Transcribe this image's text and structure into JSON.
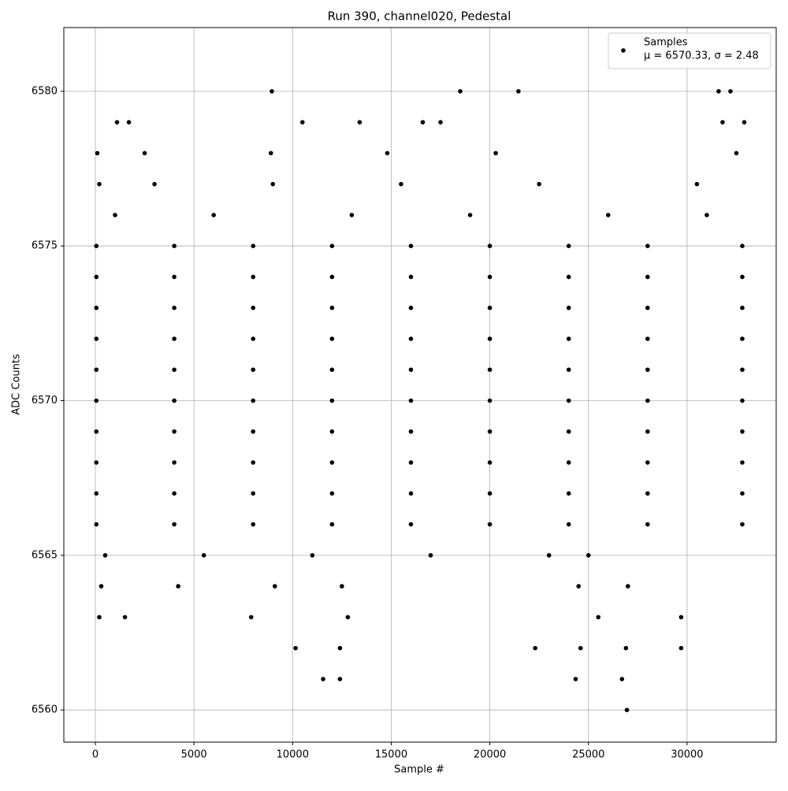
{
  "chart_data": {
    "type": "scatter",
    "title": "Run 390, channel020, Pedestal",
    "x_label": "Sample #",
    "y_label": "ADC Counts",
    "x": [
      50,
      4000,
      8000,
      12000,
      16000,
      20000,
      24000,
      28000,
      32800,
      50,
      4000,
      8000,
      12000,
      16000,
      20000,
      24000,
      28000,
      32800,
      50,
      4000,
      8000,
      12000,
      16000,
      20000,
      24000,
      28000,
      32800,
      50,
      4000,
      8000,
      12000,
      16000,
      20000,
      24000,
      28000,
      32800,
      50,
      4000,
      8000,
      12000,
      16000,
      20000,
      24000,
      28000,
      32800,
      50,
      4000,
      8000,
      12000,
      16000,
      20000,
      24000,
      28000,
      32800,
      50,
      4000,
      8000,
      12000,
      16000,
      20000,
      24000,
      28000,
      32800,
      50,
      4000,
      8000,
      12000,
      16000,
      20000,
      24000,
      28000,
      32800,
      50,
      4000,
      8000,
      12000,
      16000,
      20000,
      24000,
      28000,
      32800,
      50,
      4000,
      8000,
      12000,
      16000,
      20000,
      24000,
      28000,
      32800,
      1000,
      6000,
      13000,
      19000,
      26000,
      31000,
      500,
      5500,
      11000,
      17000,
      23000,
      25000,
      200,
      3000,
      9000,
      15500,
      22500,
      30500,
      300,
      4200,
      9100,
      12500,
      24500,
      27000,
      100,
      2500,
      8900,
      14800,
      20300,
      32500,
      200,
      1500,
      7900,
      12800,
      25500,
      29700,
      1100,
      1700,
      10500,
      13400,
      16600,
      17500,
      31800,
      32900,
      8950,
      18500,
      21450,
      31600,
      32200,
      10150,
      12400,
      22300,
      24600,
      26900,
      29700,
      11550,
      12400,
      24350,
      26700,
      26950
    ],
    "series": [
      {
        "name": "Samples",
        "color": "#000000",
        "values": [
          6566,
          6566,
          6566,
          6566,
          6566,
          6566,
          6566,
          6566,
          6566,
          6567,
          6567,
          6567,
          6567,
          6567,
          6567,
          6567,
          6567,
          6567,
          6568,
          6568,
          6568,
          6568,
          6568,
          6568,
          6568,
          6568,
          6568,
          6569,
          6569,
          6569,
          6569,
          6569,
          6569,
          6569,
          6569,
          6569,
          6570,
          6570,
          6570,
          6570,
          6570,
          6570,
          6570,
          6570,
          6570,
          6571,
          6571,
          6571,
          6571,
          6571,
          6571,
          6571,
          6571,
          6571,
          6572,
          6572,
          6572,
          6572,
          6572,
          6572,
          6572,
          6572,
          6572,
          6573,
          6573,
          6573,
          6573,
          6573,
          6573,
          6573,
          6573,
          6573,
          6574,
          6574,
          6574,
          6574,
          6574,
          6574,
          6574,
          6574,
          6574,
          6575,
          6575,
          6575,
          6575,
          6575,
          6575,
          6575,
          6575,
          6575,
          6576,
          6576,
          6576,
          6576,
          6576,
          6576,
          6565,
          6565,
          6565,
          6565,
          6565,
          6565,
          6577,
          6577,
          6577,
          6577,
          6577,
          6577,
          6564,
          6564,
          6564,
          6564,
          6564,
          6564,
          6578,
          6578,
          6578,
          6578,
          6578,
          6578,
          6563,
          6563,
          6563,
          6563,
          6563,
          6563,
          6579,
          6579,
          6579,
          6579,
          6579,
          6579,
          6579,
          6579,
          6580,
          6580,
          6580,
          6580,
          6580,
          6562,
          6562,
          6562,
          6562,
          6562,
          6562,
          6561,
          6561,
          6561,
          6561,
          6560
        ]
      }
    ],
    "legend_note": "μ = 6570.33, σ = 2.48",
    "xlim": [
      -1598,
      34518
    ],
    "ylim": [
      6558.96,
      6582.06
    ],
    "xticks": [
      0,
      5000,
      10000,
      15000,
      20000,
      25000,
      30000
    ],
    "yticks": [
      6560,
      6565,
      6570,
      6575,
      6580
    ],
    "grid": true,
    "legend": "upper right"
  }
}
